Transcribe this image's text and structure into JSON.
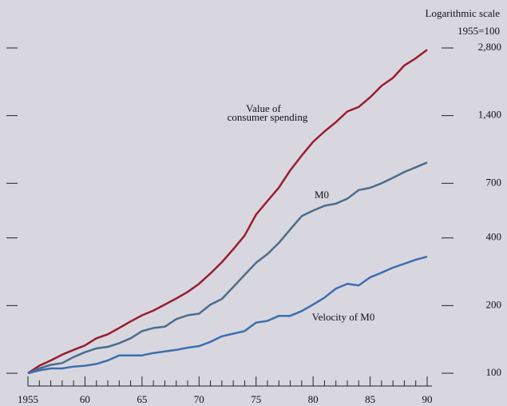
{
  "chart_data": {
    "type": "line",
    "log_scale": true,
    "annotations": [
      "Logarithmic scale",
      "1955=100"
    ],
    "x": [
      1955,
      1956,
      1957,
      1958,
      1959,
      1960,
      1961,
      1962,
      1963,
      1964,
      1965,
      1966,
      1967,
      1968,
      1969,
      1970,
      1971,
      1972,
      1973,
      1974,
      1975,
      1976,
      1977,
      1978,
      1979,
      1980,
      1981,
      1982,
      1983,
      1984,
      1985,
      1986,
      1987,
      1988,
      1989,
      1990
    ],
    "series": [
      {
        "name": [
          "Value of",
          "consumer spending"
        ],
        "color": "#9a1c2c",
        "values": [
          100,
          108,
          114,
          121,
          127,
          133,
          143,
          149,
          159,
          170,
          181,
          190,
          202,
          215,
          230,
          250,
          278,
          312,
          356,
          410,
          508,
          584,
          670,
          800,
          930,
          1070,
          1190,
          1310,
          1460,
          1530,
          1690,
          1900,
          2060,
          2340,
          2520,
          2750
        ]
      },
      {
        "name": [
          "M0"
        ],
        "color": "#4d6c8c",
        "values": [
          100,
          105,
          109,
          111,
          118,
          124,
          129,
          131,
          136,
          143,
          154,
          159,
          161,
          174,
          181,
          184,
          202,
          214,
          242,
          274,
          310,
          339,
          380,
          437,
          500,
          529,
          556,
          568,
          598,
          653,
          668,
          700,
          740,
          786,
          825,
          866
        ]
      },
      {
        "name": [
          "Velocity of M0"
        ],
        "color": "#3d6eae",
        "values": [
          100,
          103,
          105,
          105,
          107,
          108,
          110,
          114,
          120,
          120,
          120,
          123,
          125,
          127,
          130,
          132,
          138,
          146,
          150,
          154,
          168,
          171,
          180,
          180,
          189,
          202,
          217,
          238,
          250,
          246,
          267,
          280,
          295,
          307,
          320,
          330
        ]
      }
    ],
    "xlim": [
      1955,
      1990
    ],
    "xticks": [
      1955,
      {
        "value": 1960,
        "label": "60"
      },
      {
        "value": 1965,
        "label": "65"
      },
      {
        "value": 1970,
        "label": "70"
      },
      {
        "value": 1975,
        "label": "75"
      },
      {
        "value": 1980,
        "label": "80"
      },
      {
        "value": 1985,
        "label": "85"
      },
      {
        "value": 1990,
        "label": "90"
      }
    ],
    "xminorticks": [
      1956,
      1957,
      1958,
      1959,
      1961,
      1962,
      1963,
      1964,
      1966,
      1967,
      1968,
      1969,
      1971,
      1972,
      1973,
      1974,
      1976,
      1977,
      1978,
      1979,
      1981,
      1982,
      1983,
      1984,
      1986,
      1987,
      1988,
      1989
    ],
    "ylim": [
      90,
      3000
    ],
    "yticks": [
      100,
      200,
      400,
      700,
      {
        "value": 1400,
        "label": "1,400"
      },
      {
        "value": 2800,
        "label": "2,800"
      }
    ]
  }
}
